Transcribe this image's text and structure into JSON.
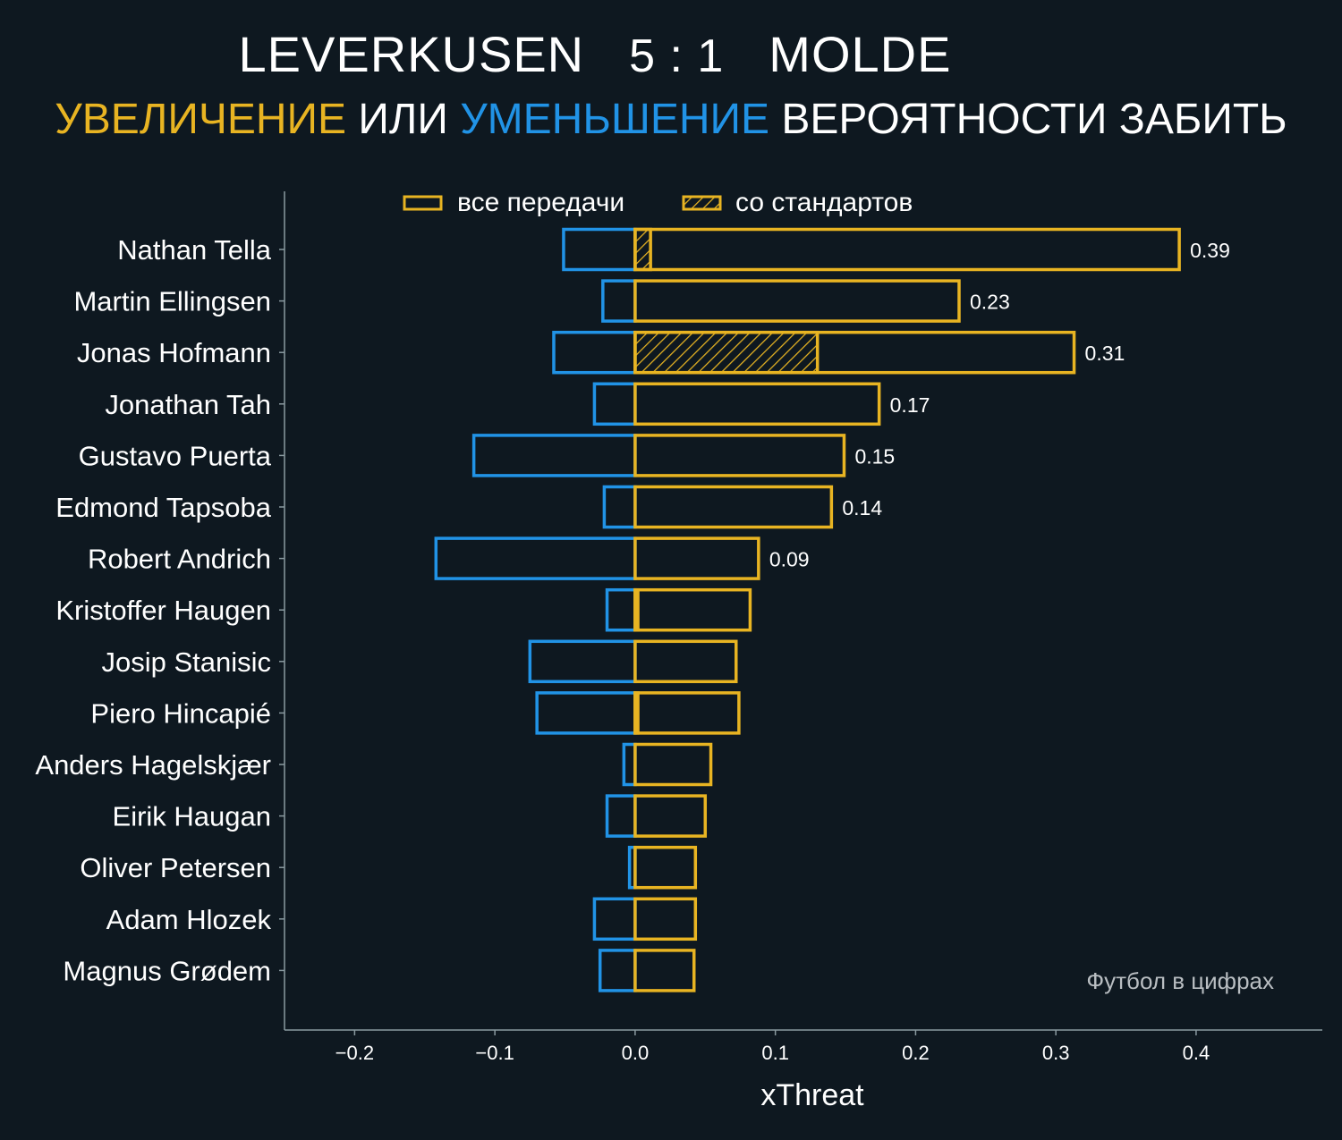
{
  "header": {
    "team_home": "LEVERKUSEN",
    "score": "5 : 1",
    "team_away": "MOLDE",
    "subtitle_increase": "УВЕЛИЧЕНИЕ",
    "subtitle_or": " ИЛИ ",
    "subtitle_decrease": "УМЕНЬШЕНИЕ",
    "subtitle_rest": " ВЕРОЯТНОСТИ ЗАБИТЬ"
  },
  "colors": {
    "background": "#0e1820",
    "increase": "#e8b422",
    "decrease": "#2193e6",
    "axis": "#8a9aa0",
    "text": "#ffffff"
  },
  "watermark": "Футбол в цифрах",
  "chart_data": {
    "type": "bar",
    "orientation": "horizontal",
    "xlabel": "xThreat",
    "xlim": [
      -0.25,
      0.49
    ],
    "xticks": [
      -0.2,
      -0.1,
      0.0,
      0.1,
      0.2,
      0.3,
      0.4
    ],
    "xtick_labels": [
      "−0.2",
      "−0.1",
      "0.0",
      "0.1",
      "0.2",
      "0.3",
      "0.4"
    ],
    "legend": {
      "position": "top-center",
      "entries": [
        "все передачи",
        "со стандартов"
      ]
    },
    "categories": [
      "Nathan Tella",
      "Martin Ellingsen",
      "Jonas Hofmann",
      "Jonathan Tah",
      "Gustavo Puerta",
      "Edmond Tapsoba",
      "Robert Andrich",
      "Kristoffer Haugen",
      "Josip Stanisic",
      "Piero Hincapié",
      "Anders Hagelskjær",
      "Eirik Haugan",
      "Oliver Petersen",
      "Adam Hlozek",
      "Magnus Grødem"
    ],
    "series": [
      {
        "name": "все передачи",
        "positive": [
          0.388,
          0.231,
          0.313,
          0.174,
          0.149,
          0.14,
          0.088,
          0.082,
          0.072,
          0.074,
          0.054,
          0.05,
          0.043,
          0.043,
          0.042
        ],
        "negative": [
          -0.051,
          -0.023,
          -0.058,
          -0.029,
          -0.115,
          -0.022,
          -0.142,
          -0.02,
          -0.075,
          -0.07,
          -0.008,
          -0.02,
          -0.004,
          -0.029,
          -0.025
        ]
      },
      {
        "name": "со стандартов",
        "positive": [
          0.011,
          0.0,
          0.13,
          0.0,
          0.0,
          0.0,
          0.0,
          0.002,
          0.0,
          0.002,
          0.0,
          0.0,
          0.0,
          0.0,
          0.0
        ]
      }
    ],
    "value_labels": [
      "0.39",
      "0.23",
      "0.31",
      "0.17",
      "0.15",
      "0.14",
      "0.09",
      "",
      "",
      "",
      "",
      "",
      "",
      "",
      ""
    ]
  }
}
